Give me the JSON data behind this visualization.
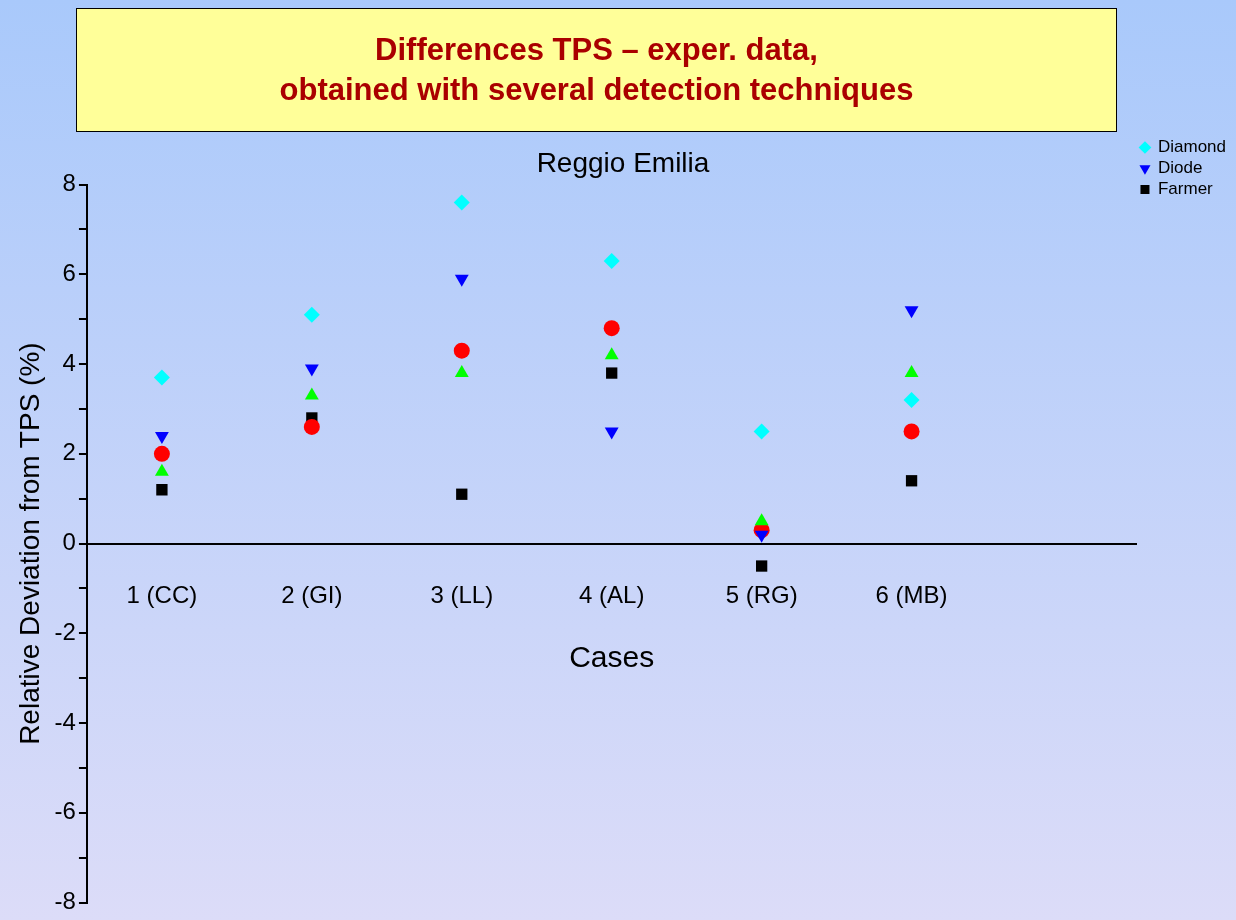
{
  "chart_data": {
    "type": "scatter",
    "title": "Differences TPS – exper. data,\nobtained with several detection techniques",
    "subtitle": "Reggio Emilia",
    "xlabel": "Cases",
    "ylabel": "Relative Deviation from TPS (%)",
    "categories": [
      "1 (CC)",
      "2 (GI)",
      "3 (LL)",
      "4 (AL)",
      "5 (RG)",
      "6 (MB)"
    ],
    "series": [
      {
        "name": "Farmer",
        "color": "#000000",
        "marker": "square",
        "values": [
          1.2,
          2.8,
          1.1,
          3.8,
          -0.5,
          1.4
        ]
      },
      {
        "color": "#ff0000",
        "marker": "circle",
        "values": [
          2.0,
          2.6,
          4.3,
          4.8,
          0.3,
          2.5
        ]
      },
      {
        "color": "#00ff00",
        "marker": "triangle",
        "values": [
          1.6,
          3.3,
          3.8,
          4.2,
          0.5,
          3.8
        ]
      },
      {
        "name": "Diode",
        "color": "#0000ff",
        "marker": "triangle-down",
        "values": [
          2.4,
          3.9,
          5.9,
          2.5,
          0.2,
          5.2
        ]
      },
      {
        "name": "Diamond",
        "color": "#00ffff",
        "marker": "diamond",
        "values": [
          3.7,
          5.1,
          7.6,
          6.3,
          2.5,
          3.2
        ]
      }
    ],
    "ylim": [
      -8,
      8
    ],
    "yticks": [
      -8,
      {
        "value": -7,
        "label": null
      },
      -6,
      {
        "value": -5,
        "label": null
      },
      -4,
      {
        "value": -3,
        "label": null
      },
      -2,
      {
        "value": -1,
        "label": null
      },
      0,
      {
        "value": 1,
        "label": null
      },
      2,
      {
        "value": 3,
        "label": null
      },
      4,
      {
        "value": 5,
        "label": null
      },
      6,
      {
        "value": 7,
        "label": null
      },
      8
    ],
    "grid": false,
    "legend": "top right"
  }
}
